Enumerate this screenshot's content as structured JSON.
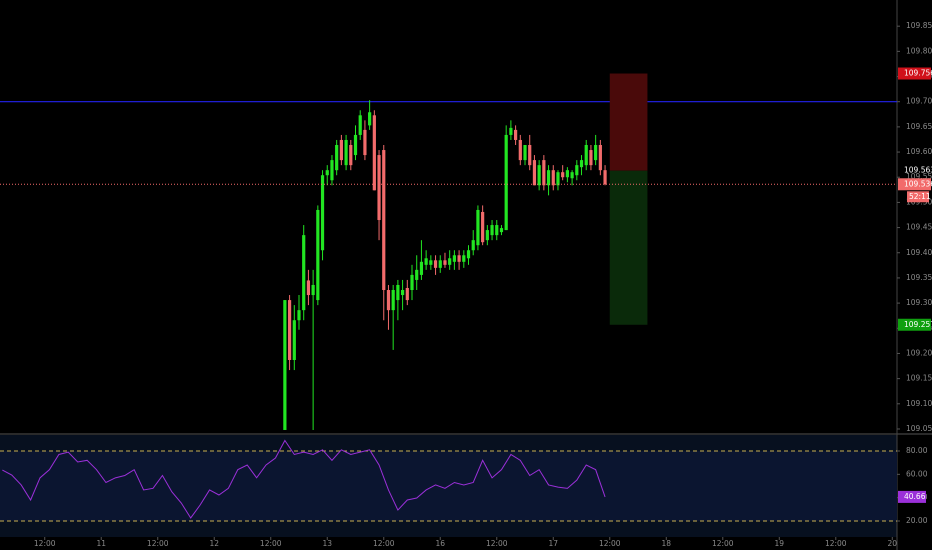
{
  "chart_data": [
    {
      "type": "candlestick",
      "x": [
        51,
        52,
        53,
        54,
        55,
        56,
        57,
        58,
        59,
        60,
        61,
        62,
        63,
        64,
        65,
        66,
        67,
        68,
        69,
        70,
        71,
        72,
        73,
        74,
        75,
        76,
        77,
        78,
        79,
        80,
        81,
        82,
        83,
        84,
        85,
        86,
        87,
        88,
        89,
        90,
        91,
        92,
        93,
        94,
        95,
        96,
        97,
        98,
        99,
        100,
        101,
        102,
        103,
        104,
        105,
        106,
        107,
        108,
        109,
        110,
        111,
        112,
        113,
        114,
        115,
        116,
        117,
        118,
        119
      ],
      "open": [
        109.048,
        109.306,
        109.187,
        109.266,
        109.286,
        109.345,
        109.316,
        109.306,
        109.405,
        109.554,
        109.544,
        109.564,
        109.624,
        109.574,
        109.614,
        109.594,
        109.634,
        109.644,
        109.653,
        109.673,
        109.594,
        109.604,
        109.326,
        109.286,
        109.306,
        109.316,
        109.33,
        109.326,
        109.346,
        109.356,
        109.376,
        109.376,
        109.385,
        109.37,
        109.385,
        109.376,
        109.382,
        109.395,
        109.382,
        109.389,
        109.405,
        109.415,
        109.481,
        109.425,
        109.435,
        109.435,
        109.441,
        109.445,
        109.634,
        109.644,
        109.624,
        109.584,
        109.614,
        109.584,
        109.534,
        109.584,
        109.534,
        109.564,
        109.534,
        109.56,
        109.55,
        109.548,
        109.554,
        109.57,
        109.574,
        109.604,
        109.584,
        109.614,
        109.564
      ],
      "high": [
        109.306,
        109.316,
        109.296,
        109.316,
        109.455,
        109.366,
        109.366,
        109.494,
        109.564,
        109.574,
        109.594,
        109.624,
        109.634,
        109.634,
        109.624,
        109.653,
        109.683,
        109.663,
        109.703,
        109.683,
        109.604,
        109.614,
        109.336,
        109.336,
        109.346,
        109.346,
        109.346,
        109.376,
        109.395,
        109.425,
        109.405,
        109.395,
        109.395,
        109.395,
        109.4,
        109.405,
        109.405,
        109.405,
        109.405,
        109.415,
        109.445,
        109.494,
        109.494,
        109.455,
        109.465,
        109.465,
        109.455,
        109.653,
        109.663,
        109.653,
        109.634,
        109.614,
        109.634,
        109.594,
        109.584,
        109.594,
        109.574,
        109.574,
        109.564,
        109.574,
        109.57,
        109.564,
        109.584,
        109.594,
        109.624,
        109.614,
        109.634,
        109.624,
        109.574
      ],
      "low": [
        109.048,
        109.167,
        109.167,
        109.247,
        109.266,
        109.296,
        109.048,
        109.296,
        109.385,
        109.534,
        109.534,
        109.554,
        109.574,
        109.564,
        109.564,
        109.584,
        109.624,
        109.584,
        109.644,
        109.524,
        109.425,
        109.266,
        109.247,
        109.207,
        109.266,
        109.286,
        109.296,
        109.306,
        109.326,
        109.346,
        109.366,
        109.366,
        109.356,
        109.36,
        109.37,
        109.366,
        109.366,
        109.366,
        109.37,
        109.376,
        109.395,
        109.405,
        109.415,
        109.415,
        109.425,
        109.425,
        109.435,
        109.445,
        109.624,
        109.614,
        109.574,
        109.574,
        109.564,
        109.534,
        109.524,
        109.524,
        109.514,
        109.524,
        109.524,
        109.544,
        109.54,
        109.534,
        109.544,
        109.554,
        109.564,
        109.564,
        109.574,
        109.554,
        109.534
      ],
      "close": [
        109.306,
        109.187,
        109.266,
        109.286,
        109.435,
        109.316,
        109.336,
        109.485,
        109.554,
        109.564,
        109.584,
        109.614,
        109.584,
        109.624,
        109.574,
        109.634,
        109.673,
        109.594,
        109.679,
        109.524,
        109.465,
        109.326,
        109.286,
        109.326,
        109.336,
        109.326,
        109.306,
        109.356,
        109.366,
        109.382,
        109.389,
        109.385,
        109.37,
        109.385,
        109.376,
        109.389,
        109.395,
        109.382,
        109.395,
        109.405,
        109.425,
        109.485,
        109.421,
        109.445,
        109.455,
        109.455,
        109.449,
        109.634,
        109.648,
        109.624,
        109.584,
        109.614,
        109.574,
        109.534,
        109.574,
        109.534,
        109.564,
        109.534,
        109.56,
        109.55,
        109.564,
        109.56,
        109.574,
        109.584,
        109.614,
        109.574,
        109.614,
        109.564,
        109.536
      ],
      "up_color": "#22e622",
      "down_color": "#f26b6b",
      "xlim": [
        -9.5,
        181
      ],
      "ylim": [
        109.042,
        109.902
      ],
      "yticks": [
        {
          "value": 109.85,
          "label": "109.850"
        },
        {
          "value": 109.8,
          "label": "109.800"
        },
        {
          "value": 109.75,
          "label": "109.750"
        },
        {
          "value": 109.7,
          "label": "109.700"
        },
        {
          "value": 109.65,
          "label": "109.650"
        },
        {
          "value": 109.6,
          "label": "109.600"
        },
        {
          "value": 109.55,
          "label": "109.550"
        },
        {
          "value": 109.5,
          "label": "109.500"
        },
        {
          "value": 109.45,
          "label": "109.450"
        },
        {
          "value": 109.4,
          "label": "109.400"
        },
        {
          "value": 109.35,
          "label": "109.350"
        },
        {
          "value": 109.3,
          "label": "109.300"
        },
        {
          "value": 109.25,
          "label": "109.250"
        },
        {
          "value": 109.2,
          "label": "109.200"
        },
        {
          "value": 109.15,
          "label": "109.150"
        },
        {
          "value": 109.1,
          "label": "109.100"
        },
        {
          "value": 109.05,
          "label": "109.050"
        }
      ],
      "hline": {
        "value": 109.7,
        "color": "#2222ee"
      },
      "current_price": 109.536,
      "countdown": "52:11",
      "position": {
        "x_start": 120,
        "x_end": 128,
        "stop": 109.756,
        "entry": 109.563,
        "target": 109.257
      }
    },
    {
      "type": "line",
      "series": [
        {
          "name": "RSI",
          "color": "#9b30d9",
          "x": [
            -9,
            -7,
            -5,
            -3,
            -1,
            1,
            3,
            5,
            7,
            9,
            11,
            13,
            15,
            17,
            19,
            21,
            23,
            25,
            27,
            29,
            31,
            33,
            35,
            37,
            39,
            41,
            43,
            45,
            47,
            49,
            51,
            53,
            55,
            57,
            59,
            61,
            63,
            65,
            67,
            69,
            71,
            73,
            75,
            77,
            79,
            81,
            83,
            85,
            87,
            89,
            91,
            93,
            95,
            97,
            99,
            101,
            103,
            105,
            107,
            109,
            111,
            113,
            115,
            117,
            119
          ],
          "values": [
            63.7,
            59.4,
            50.9,
            38,
            57,
            64,
            77,
            79,
            70.6,
            72,
            64,
            53,
            57,
            59,
            64,
            46.6,
            48,
            59,
            45,
            35.4,
            22.6,
            33.7,
            46.6,
            42.3,
            48,
            64,
            68,
            57,
            68,
            74,
            89,
            77,
            79,
            77,
            81,
            72,
            81,
            77,
            79,
            81,
            68,
            46.6,
            29.4,
            38,
            39.7,
            46.6,
            50.9,
            48,
            53,
            50.9,
            53,
            72,
            57,
            64,
            77,
            72,
            59,
            64,
            50.9,
            49,
            48,
            55,
            68,
            64,
            40.66
          ]
        }
      ],
      "band": [
        20,
        80
      ],
      "xlim": [
        -9.5,
        181
      ],
      "ylim": [
        6.3,
        93.7
      ],
      "yticks": [
        {
          "value": 80,
          "label": "80.00"
        },
        {
          "value": 60,
          "label": "60.00"
        },
        {
          "value": 40,
          "label": "40.00"
        },
        {
          "value": 20,
          "label": "20.00"
        }
      ],
      "xticks": [
        {
          "value": 0,
          "label": "12:00"
        },
        {
          "value": 12,
          "label": "11"
        },
        {
          "value": 24,
          "label": "12:00"
        },
        {
          "value": 36,
          "label": "12"
        },
        {
          "value": 48,
          "label": "12:00"
        },
        {
          "value": 60,
          "label": "13"
        },
        {
          "value": 72,
          "label": "12:00"
        },
        {
          "value": 84,
          "label": "16"
        },
        {
          "value": 96,
          "label": "12:00"
        },
        {
          "value": 108,
          "label": "17"
        },
        {
          "value": 120,
          "label": "12:00"
        },
        {
          "value": 132,
          "label": "18"
        },
        {
          "value": 144,
          "label": "12:00"
        },
        {
          "value": 156,
          "label": "19"
        },
        {
          "value": 168,
          "label": "12:00"
        },
        {
          "value": 180,
          "label": "20"
        }
      ]
    }
  ]
}
